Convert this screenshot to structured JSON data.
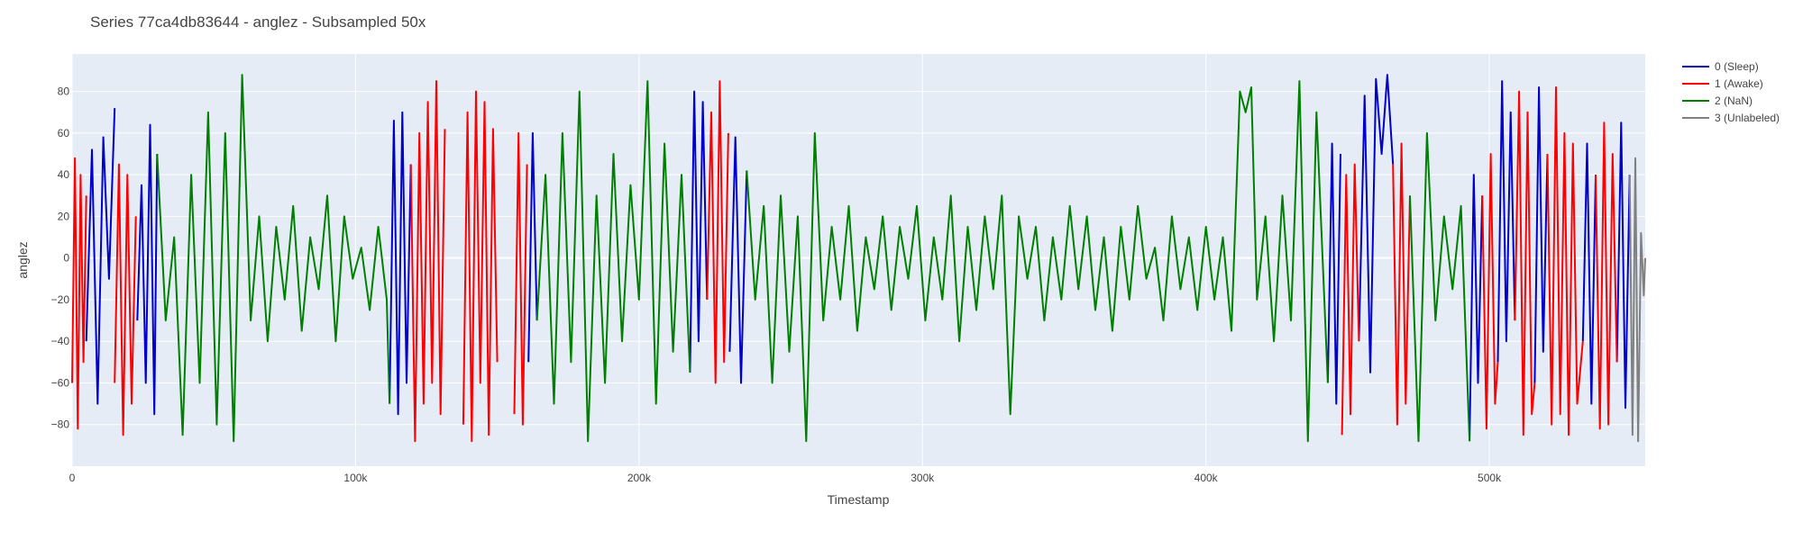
{
  "chart_data": {
    "type": "line",
    "title": "Series 77ca4db83644 - anglez - Subsampled 50x",
    "xlabel": "Timestamp",
    "ylabel": "anglez",
    "xlim": [
      0,
      555000
    ],
    "ylim": [
      -100,
      98
    ],
    "x_ticks": [
      {
        "value": 0,
        "label": "0"
      },
      {
        "value": 100000,
        "label": "100k"
      },
      {
        "value": 200000,
        "label": "200k"
      },
      {
        "value": 300000,
        "label": "300k"
      },
      {
        "value": 400000,
        "label": "400k"
      },
      {
        "value": 500000,
        "label": "500k"
      }
    ],
    "y_ticks": [
      {
        "value": 80,
        "label": "80"
      },
      {
        "value": 60,
        "label": "60"
      },
      {
        "value": 40,
        "label": "40"
      },
      {
        "value": 20,
        "label": "20"
      },
      {
        "value": 0,
        "label": "0"
      },
      {
        "value": -20,
        "label": "−20"
      },
      {
        "value": -40,
        "label": "−40"
      },
      {
        "value": -60,
        "label": "−60"
      },
      {
        "value": -80,
        "label": "−80"
      }
    ],
    "grid": true,
    "legend_position": "right",
    "plot_background": "#e5ecf6",
    "series": [
      {
        "name": "0 (Sleep)",
        "color": "#0000cc",
        "segments": [
          {
            "x": [
              5000,
              7000,
              9000,
              11000,
              13000,
              15000
            ],
            "y": [
              -40,
              52,
              -70,
              58,
              -10,
              72
            ]
          },
          {
            "x": [
              23000,
              24500,
              26000,
              27500,
              29000,
              30000
            ],
            "y": [
              -30,
              35,
              -60,
              64,
              -75,
              50
            ]
          },
          {
            "x": [
              112000,
              113500,
              115000,
              116500,
              118000,
              119500
            ],
            "y": [
              -70,
              66,
              -75,
              70,
              -60,
              45
            ]
          },
          {
            "x": [
              161000,
              162500,
              164000
            ],
            "y": [
              -50,
              60,
              -30
            ]
          },
          {
            "x": [
              218000,
              219500,
              221000,
              222500,
              224000
            ],
            "y": [
              -55,
              80,
              -40,
              75,
              -20
            ]
          },
          {
            "x": [
              232000,
              234000,
              236000,
              238000
            ],
            "y": [
              -45,
              58,
              -60,
              42
            ]
          },
          {
            "x": [
              443000,
              444500,
              446000,
              447500
            ],
            "y": [
              -60,
              55,
              -70,
              50
            ]
          },
          {
            "x": [
              454000,
              456000,
              458000,
              460000,
              462000,
              464000,
              466000
            ],
            "y": [
              -40,
              78,
              -55,
              86,
              50,
              88,
              45
            ]
          },
          {
            "x": [
              493000,
              494500,
              496000,
              497500
            ],
            "y": [
              -88,
              40,
              -60,
              30
            ]
          },
          {
            "x": [
              503000,
              504500,
              506000,
              507500,
              509000
            ],
            "y": [
              -50,
              85,
              -40,
              70,
              -30
            ]
          },
          {
            "x": [
              516000,
              517500,
              519000,
              520500
            ],
            "y": [
              -60,
              82,
              -45,
              50
            ]
          },
          {
            "x": [
              533000,
              534500,
              536000,
              537500
            ],
            "y": [
              -40,
              55,
              -70,
              40
            ]
          },
          {
            "x": [
              545000,
              546500,
              548000,
              549500
            ],
            "y": [
              -50,
              65,
              -72,
              40
            ]
          }
        ]
      },
      {
        "name": "1 (Awake)",
        "color": "#ff0000",
        "segments": [
          {
            "x": [
              0,
              1000,
              2000,
              3000,
              4000,
              5000
            ],
            "y": [
              -60,
              48,
              -82,
              40,
              -50,
              30
            ]
          },
          {
            "x": [
              15000,
              16500,
              18000,
              19500,
              21000,
              22500
            ],
            "y": [
              -60,
              45,
              -85,
              40,
              -70,
              20
            ]
          },
          {
            "x": [
              119500,
              121000,
              122500,
              124000,
              125500,
              127000,
              128500,
              130000,
              131500
            ],
            "y": [
              45,
              -88,
              60,
              -70,
              75,
              -60,
              85,
              -75,
              62
            ]
          },
          {
            "x": [
              138000,
              139500,
              141000,
              142500,
              144000,
              145500,
              147000,
              148500,
              150000
            ],
            "y": [
              -80,
              70,
              -88,
              80,
              -60,
              75,
              -85,
              62,
              -50
            ]
          },
          {
            "x": [
              156000,
              157500,
              159000,
              160500
            ],
            "y": [
              -75,
              60,
              -80,
              45
            ]
          },
          {
            "x": [
              224000,
              225500,
              227000,
              228500,
              230000,
              231500
            ],
            "y": [
              -20,
              70,
              -60,
              85,
              -50,
              60
            ]
          },
          {
            "x": [
              448000,
              449500,
              451000,
              452500,
              454000
            ],
            "y": [
              -85,
              40,
              -75,
              45,
              -40
            ]
          },
          {
            "x": [
              466000,
              467500,
              469000,
              470500,
              472000
            ],
            "y": [
              45,
              -80,
              55,
              -70,
              30
            ]
          },
          {
            "x": [
              497500,
              499000,
              500500,
              502000,
              503000
            ],
            "y": [
              30,
              -82,
              50,
              -70,
              -50
            ]
          },
          {
            "x": [
              509000,
              510500,
              512000,
              513500,
              515000,
              516000
            ],
            "y": [
              -30,
              80,
              -85,
              70,
              -75,
              -60
            ]
          },
          {
            "x": [
              520500,
              522000,
              523500,
              525000,
              526500,
              528000,
              529500,
              531000,
              533000
            ],
            "y": [
              50,
              -80,
              82,
              -75,
              60,
              -85,
              55,
              -70,
              -40
            ]
          },
          {
            "x": [
              537500,
              539000,
              540500,
              542000,
              543500,
              545000
            ],
            "y": [
              40,
              -82,
              65,
              -80,
              50,
              -50
            ]
          }
        ]
      },
      {
        "name": "2 (NaN)",
        "color": "#008000",
        "segments": [
          {
            "x": [
              30000,
              33000,
              36000,
              39000,
              42000,
              45000,
              48000,
              51000,
              54000,
              57000,
              60000,
              63000,
              66000,
              69000,
              72000,
              75000,
              78000,
              81000,
              84000,
              87000,
              90000,
              93000,
              96000,
              99000,
              102000,
              105000,
              108000,
              111000,
              112000
            ],
            "y": [
              50,
              -30,
              10,
              -85,
              40,
              -60,
              70,
              -80,
              60,
              -88,
              88,
              -30,
              20,
              -40,
              15,
              -20,
              25,
              -35,
              10,
              -15,
              30,
              -40,
              20,
              -10,
              5,
              -25,
              15,
              -20,
              -70
            ]
          },
          {
            "x": [
              164000,
              167000,
              170000,
              173000,
              176000,
              179000,
              182000,
              185000,
              188000,
              191000,
              194000,
              197000,
              200000,
              203000,
              206000,
              209000,
              212000,
              215000,
              218000
            ],
            "y": [
              -30,
              40,
              -70,
              60,
              -50,
              80,
              -88,
              30,
              -60,
              50,
              -40,
              35,
              -20,
              85,
              -70,
              55,
              -45,
              40,
              -55
            ]
          },
          {
            "x": [
              238000,
              241000,
              244000,
              247000,
              250000,
              253000,
              256000,
              259000,
              262000,
              265000,
              268000,
              271000,
              274000,
              277000,
              280000,
              283000,
              286000,
              289000,
              292000,
              295000,
              298000,
              301000,
              304000,
              307000,
              310000,
              313000,
              316000,
              319000,
              322000,
              325000,
              328000,
              331000,
              334000,
              337000,
              340000,
              343000,
              346000,
              349000,
              352000,
              355000,
              358000,
              361000,
              364000,
              367000,
              370000,
              373000,
              376000,
              379000,
              382000,
              385000,
              388000,
              391000,
              394000,
              397000,
              400000,
              403000,
              406000,
              409000,
              412000,
              414000,
              416000,
              418000,
              421000,
              424000,
              427000,
              430000,
              433000,
              436000,
              439000,
              443000
            ],
            "y": [
              42,
              -20,
              25,
              -60,
              30,
              -45,
              20,
              -88,
              60,
              -30,
              15,
              -20,
              25,
              -35,
              10,
              -15,
              20,
              -25,
              15,
              -10,
              25,
              -30,
              10,
              -20,
              30,
              -40,
              15,
              -25,
              20,
              -15,
              30,
              -75,
              20,
              -10,
              15,
              -30,
              10,
              -20,
              25,
              -15,
              20,
              -25,
              10,
              -35,
              15,
              -20,
              25,
              -10,
              5,
              -30,
              20,
              -15,
              10,
              -25,
              15,
              -20,
              10,
              -35,
              80,
              70,
              82,
              -20,
              20,
              -40,
              30,
              -30,
              85,
              -88,
              70,
              -60
            ]
          },
          {
            "x": [
              472000,
              475000,
              478000,
              481000,
              484000,
              487000,
              490000,
              493000
            ],
            "y": [
              30,
              -88,
              60,
              -30,
              20,
              -15,
              25,
              -88
            ]
          }
        ]
      },
      {
        "name": "3 (Unlabeled)",
        "color": "#808080",
        "segments": [
          {
            "x": [
              549500,
              550500,
              551500,
              552500,
              553500,
              554500,
              555000
            ],
            "y": [
              40,
              -85,
              48,
              -88,
              12,
              -18,
              0
            ]
          }
        ]
      }
    ]
  }
}
